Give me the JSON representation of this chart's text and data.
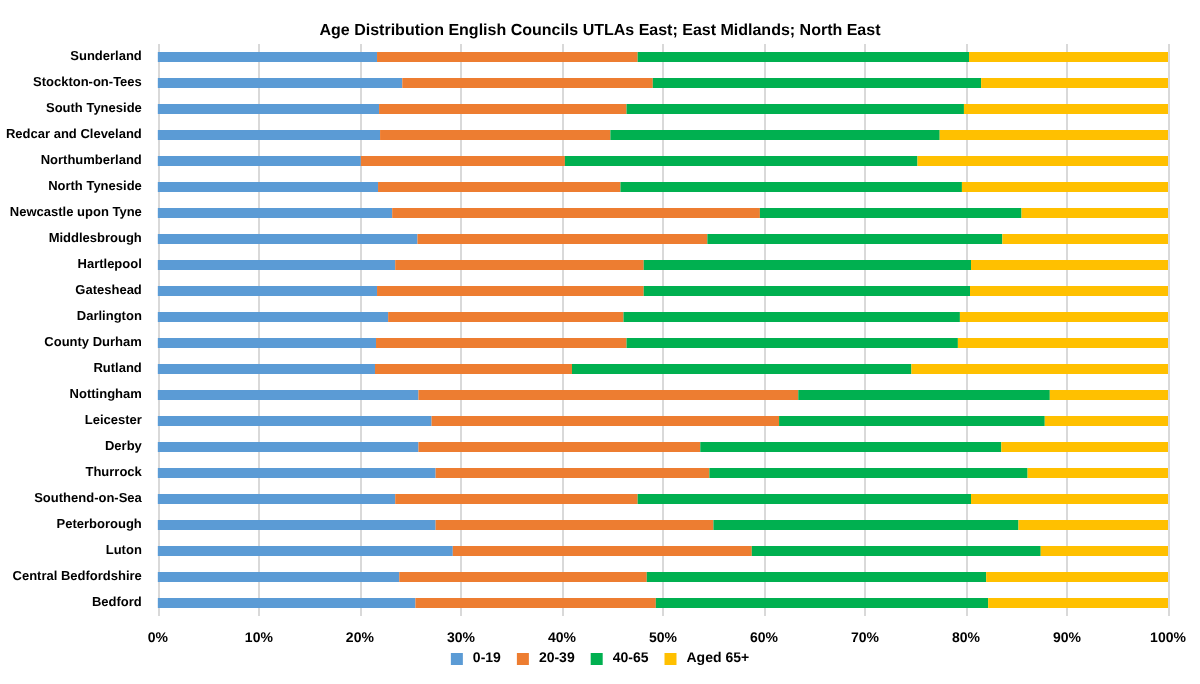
{
  "chart_data": {
    "type": "bar",
    "orientation": "horizontal",
    "stacked": true,
    "title": "Age Distribution English Councils UTLAs East; East Midlands; North East",
    "categories": [
      "Sunderland",
      "Stockton-on-Tees",
      "South Tyneside",
      "Redcar and Cleveland",
      "Northumberland",
      "North Tyneside",
      "Newcastle upon Tyne",
      "Middlesbrough",
      "Hartlepool",
      "Gateshead",
      "Darlington",
      "County Durham",
      "Rutland",
      "Nottingham",
      "Leicester",
      "Derby",
      "Thurrock",
      "Southend-on-Sea",
      "Peterborough",
      "Luton",
      "Central Bedfordshire",
      "Bedford"
    ],
    "series": [
      {
        "name": "0-19",
        "color": "#5b9bd5",
        "values": [
          21.7,
          24.2,
          21.9,
          22.0,
          20.1,
          21.8,
          23.2,
          25.7,
          23.5,
          21.7,
          22.8,
          21.6,
          21.5,
          25.8,
          27.1,
          25.8,
          27.5,
          23.5,
          27.5,
          29.2,
          23.9,
          25.5
        ]
      },
      {
        "name": "20-39",
        "color": "#ed7d31",
        "values": [
          25.8,
          24.8,
          24.5,
          22.8,
          20.2,
          24.0,
          36.4,
          28.7,
          24.6,
          26.4,
          23.3,
          24.8,
          19.5,
          37.6,
          34.4,
          27.9,
          27.1,
          24.0,
          27.5,
          29.6,
          24.5,
          23.8
        ]
      },
      {
        "name": "40-65",
        "color": "#00b050",
        "values": [
          32.8,
          32.5,
          33.4,
          32.6,
          34.9,
          33.8,
          25.9,
          29.2,
          32.4,
          32.3,
          33.3,
          32.8,
          33.6,
          24.9,
          26.3,
          29.8,
          31.5,
          33.0,
          30.2,
          28.6,
          33.6,
          32.9
        ]
      },
      {
        "name": "Aged 65+",
        "color": "#ffc000",
        "values": [
          19.7,
          18.5,
          20.2,
          22.6,
          24.8,
          20.4,
          14.5,
          16.4,
          19.5,
          19.6,
          20.6,
          20.8,
          25.4,
          11.7,
          12.2,
          16.5,
          13.9,
          19.5,
          14.8,
          12.6,
          18.0,
          17.8
        ]
      }
    ],
    "xlim": [
      0,
      100
    ],
    "xticks": [
      {
        "value": 0,
        "label": "0%"
      },
      {
        "value": 10,
        "label": "10%"
      },
      {
        "value": 20,
        "label": "20%"
      },
      {
        "value": 30,
        "label": "30%"
      },
      {
        "value": 40,
        "label": "40%"
      },
      {
        "value": 50,
        "label": "50%"
      },
      {
        "value": 60,
        "label": "60%"
      },
      {
        "value": 70,
        "label": "70%"
      },
      {
        "value": 80,
        "label": "80%"
      },
      {
        "value": 90,
        "label": "90%"
      },
      {
        "value": 100,
        "label": "100%"
      }
    ],
    "grid": "x",
    "legend": "bottom"
  }
}
